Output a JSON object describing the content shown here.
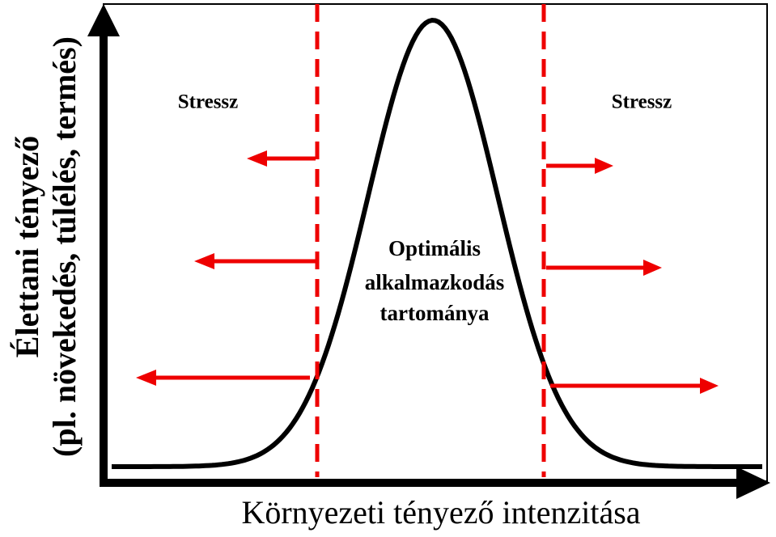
{
  "y_axis": {
    "lines": [
      "Élettani tényező",
      "(pl. növekedés, túlélés, termés)"
    ]
  },
  "x_axis": {
    "label": "Környezeti tényező intenzitása"
  },
  "stress_left": "Stressz",
  "stress_right": "Stressz",
  "optimal": {
    "lines": [
      "Optimális",
      "alkalmazkodás",
      "tartománya"
    ]
  }
}
